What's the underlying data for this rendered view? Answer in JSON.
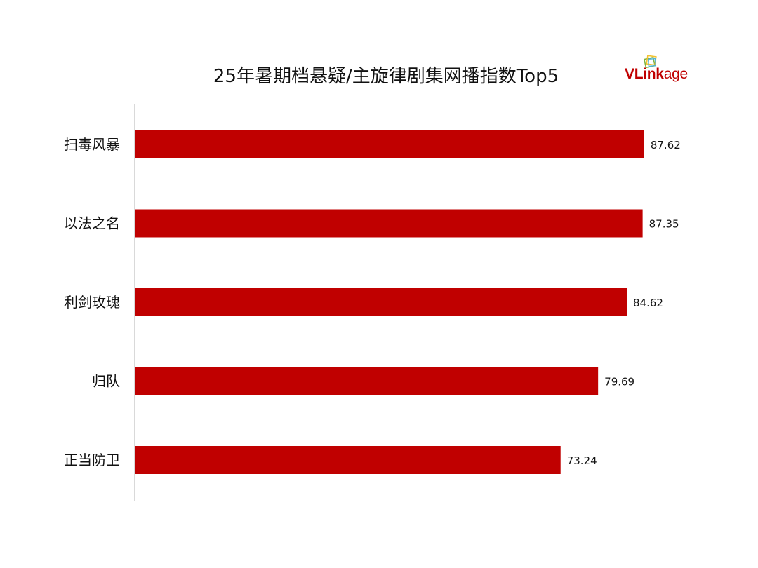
{
  "chart_data": {
    "type": "bar",
    "orientation": "horizontal",
    "title": "25年暑期档悬疑/主旋律剧集网播指数Top5",
    "categories": [
      "扫毒风暴",
      "以法之名",
      "利剑玫瑰",
      "归队",
      "正当防卫"
    ],
    "values": [
      87.62,
      87.35,
      84.62,
      79.69,
      73.24
    ],
    "value_labels": [
      "87.62",
      "87.35",
      "84.62",
      "79.69",
      "73.24"
    ],
    "xlim": [
      0,
      88
    ],
    "grid": false,
    "legend": "none",
    "bar_color": "#c00000"
  },
  "logo": {
    "text_primary": "VLink",
    "text_secondary": "age",
    "colors": {
      "text": "#c00000",
      "mark_green": "#7cb342",
      "mark_yellow": "#f2c230",
      "mark_blue": "#4fb3d9"
    }
  }
}
